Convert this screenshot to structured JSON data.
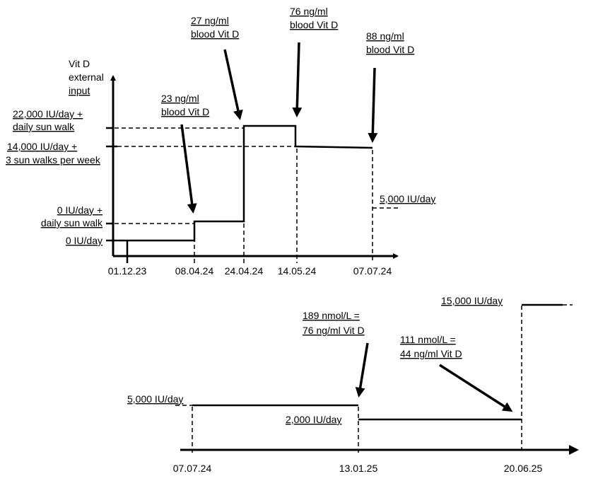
{
  "chart_data": [
    {
      "type": "line",
      "title": "",
      "ylabel": [
        "Vit D",
        "external",
        "input"
      ],
      "x_ticks": [
        "01.12.23",
        "08.04.24",
        "24.04.24",
        "14.05.24",
        "07.07.24"
      ],
      "y_levels": [
        [
          "0 IU/day"
        ],
        [
          "0 IU/day +",
          "daily sun walk"
        ],
        [
          "14,000 IU/day +",
          "3 sun walks per week"
        ],
        [
          "22,000 IU/day +",
          "daily sun walk"
        ]
      ],
      "steps": [
        {
          "from": "01.12.23",
          "to": "08.04.24",
          "level": "0 IU/day"
        },
        {
          "from": "08.04.24",
          "to": "24.04.24",
          "level": "0 IU/day + daily sun walk"
        },
        {
          "from": "24.04.24",
          "to": "14.05.24",
          "level": "22,000 IU/day + daily sun walk"
        },
        {
          "from": "14.05.24",
          "to": "07.07.24",
          "level": "14,000 IU/day + 3 sun walks per week"
        }
      ],
      "after_note": "5,000 IU/day",
      "annotations": [
        {
          "date": "08.04.24",
          "lines": [
            "23 ng/ml",
            "blood Vit D"
          ]
        },
        {
          "date": "24.04.24",
          "lines": [
            "27 ng/ml",
            "blood Vit D"
          ]
        },
        {
          "date": "14.05.24",
          "lines": [
            "76 ng/ml",
            "blood Vit D"
          ]
        },
        {
          "date": "07.07.24",
          "lines": [
            "88 ng/ml",
            "blood Vit D"
          ]
        }
      ]
    },
    {
      "type": "line",
      "x_ticks": [
        "07.07.24",
        "13.01.25",
        "20.06.25"
      ],
      "steps": [
        {
          "from": "07.07.24",
          "to": "13.01.25",
          "level": "5,000 IU/day"
        },
        {
          "from": "13.01.25",
          "to": "20.06.25",
          "level": "2,000 IU/day"
        },
        {
          "from": "20.06.25",
          "to": "",
          "level": "15,000 IU/day"
        }
      ],
      "level_labels": [
        "5,000 IU/day",
        "2,000 IU/day",
        "15,000 IU/day"
      ],
      "annotations": [
        {
          "date": "13.01.25",
          "lines": [
            "189 nmol/L =",
            "76 ng/ml Vit D"
          ]
        },
        {
          "date": "20.06.25",
          "lines": [
            "111 nmol/L =",
            "44 ng/ml Vit D"
          ]
        }
      ]
    }
  ]
}
